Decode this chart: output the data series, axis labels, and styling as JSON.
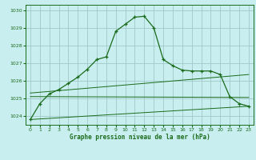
{
  "title": "Graphe pression niveau de la mer (hPa)",
  "background_color": "#c8eef0",
  "grid_color": "#a0c8c8",
  "line_color": "#1a6b1a",
  "xlim": [
    -0.5,
    23.5
  ],
  "ylim": [
    1023.5,
    1030.3
  ],
  "yticks": [
    1024,
    1025,
    1026,
    1027,
    1028,
    1029,
    1030
  ],
  "xticks": [
    0,
    1,
    2,
    3,
    4,
    5,
    6,
    7,
    8,
    9,
    10,
    11,
    12,
    13,
    14,
    15,
    16,
    17,
    18,
    19,
    20,
    21,
    22,
    23
  ],
  "series1_x": [
    0,
    1,
    2,
    3,
    4,
    5,
    6,
    7,
    8,
    9,
    10,
    11,
    12,
    13,
    14,
    15,
    16,
    17,
    18,
    19,
    20,
    21,
    22,
    23
  ],
  "series1_y": [
    1023.8,
    1024.7,
    1025.25,
    1025.5,
    1025.85,
    1026.2,
    1026.65,
    1027.2,
    1027.35,
    1028.8,
    1029.2,
    1029.6,
    1029.65,
    1029.0,
    1027.2,
    1026.85,
    1026.6,
    1026.55,
    1026.55,
    1026.55,
    1026.35,
    1025.1,
    1024.7,
    1024.55
  ],
  "series2_x": [
    0,
    23
  ],
  "series2_y": [
    1023.8,
    1024.55
  ],
  "series3_x": [
    0,
    23
  ],
  "series3_y": [
    1025.3,
    1026.35
  ],
  "series4_x": [
    0,
    23
  ],
  "series4_y": [
    1025.1,
    1025.05
  ]
}
